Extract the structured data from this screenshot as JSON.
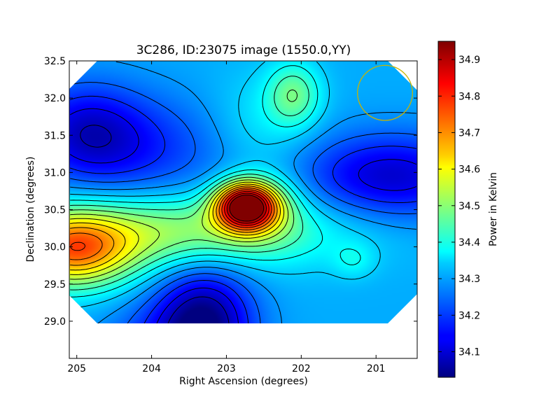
{
  "chart_data": {
    "type": "heatmap",
    "title": "3C286, ID:23075 image (1550.0,YY)",
    "xlabel": "Right Ascension (degrees)",
    "ylabel": "Declination (degrees)",
    "colorbar_label": "Power in Kelvin",
    "xlim": [
      205.1,
      200.45
    ],
    "ylim": [
      28.5,
      32.5
    ],
    "x_ticks": [
      205,
      204,
      203,
      202,
      201
    ],
    "x_tick_labels": [
      "205",
      "204",
      "203",
      "202",
      "201"
    ],
    "y_ticks": [
      29.0,
      29.5,
      30.0,
      30.5,
      31.0,
      31.5,
      32.0,
      32.5
    ],
    "y_tick_labels": [
      "29.0",
      "29.5",
      "30.0",
      "30.5",
      "31.0",
      "31.5",
      "32.0",
      "32.5"
    ],
    "colorbar_range": [
      34.03,
      34.95
    ],
    "colorbar_ticks": [
      34.1,
      34.2,
      34.3,
      34.4,
      34.5,
      34.6,
      34.7,
      34.8,
      34.9
    ],
    "colorbar_tick_labels": [
      "34.1",
      "34.2",
      "34.3",
      "34.4",
      "34.5",
      "34.6",
      "34.7",
      "34.8",
      "34.9"
    ],
    "colormap": "jet",
    "contours": true,
    "features": [
      {
        "kind": "peak",
        "ra": 202.75,
        "dec": 30.55,
        "value": 34.93
      },
      {
        "kind": "high",
        "ra": 205.0,
        "dec": 29.95,
        "value": 34.65
      },
      {
        "kind": "high",
        "ra": 202.1,
        "dec": 32.05,
        "value": 34.45
      },
      {
        "kind": "trough",
        "ra": 203.3,
        "dec": 29.0,
        "value": 34.05
      },
      {
        "kind": "trough",
        "ra": 200.8,
        "dec": 30.95,
        "value": 34.1
      },
      {
        "kind": "trough",
        "ra": 204.9,
        "dec": 31.55,
        "value": 34.12
      },
      {
        "kind": "low",
        "ra": 204.3,
        "dec": 31.15,
        "value": 34.14
      },
      {
        "kind": "bump",
        "ra": 201.3,
        "dec": 29.82,
        "value": 34.38
      }
    ],
    "beam_circle": {
      "ra": 200.88,
      "dec": 32.07,
      "radius_deg": 0.37,
      "color": "#c8b400"
    }
  }
}
